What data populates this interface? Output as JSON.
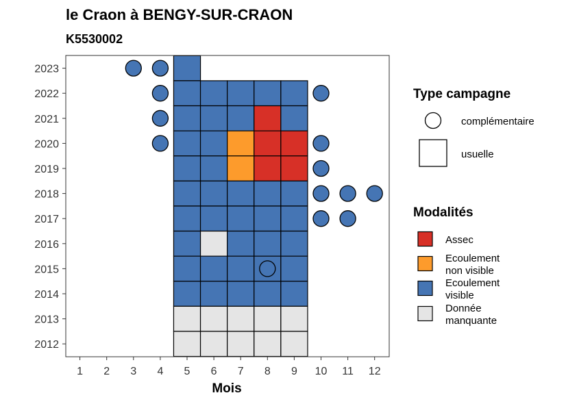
{
  "chart_data": {
    "type": "heatmap",
    "title": "le Craon à BENGY-SUR-CRAON",
    "subtitle": "K5530002",
    "xlabel": "Mois",
    "ylabel": "",
    "x_ticks": [
      "1",
      "2",
      "3",
      "4",
      "5",
      "6",
      "7",
      "8",
      "9",
      "10",
      "11",
      "12"
    ],
    "y_ticks": [
      "2012",
      "2013",
      "2014",
      "2015",
      "2016",
      "2017",
      "2018",
      "2019",
      "2020",
      "2021",
      "2022",
      "2023"
    ],
    "colors": {
      "Assec": "#d73027",
      "Ecoulement non visible": "#fd9b2c",
      "Ecoulement visible": "#4575b4",
      "Donnée manquante": "#e5e5e5"
    },
    "usuelle_cells": [
      {
        "year": 2023,
        "month": 5,
        "modalite": "Ecoulement visible"
      },
      {
        "year": 2022,
        "month": 5,
        "modalite": "Ecoulement visible"
      },
      {
        "year": 2022,
        "month": 6,
        "modalite": "Ecoulement visible"
      },
      {
        "year": 2022,
        "month": 7,
        "modalite": "Ecoulement visible"
      },
      {
        "year": 2022,
        "month": 8,
        "modalite": "Ecoulement visible"
      },
      {
        "year": 2022,
        "month": 9,
        "modalite": "Ecoulement visible"
      },
      {
        "year": 2021,
        "month": 5,
        "modalite": "Ecoulement visible"
      },
      {
        "year": 2021,
        "month": 6,
        "modalite": "Ecoulement visible"
      },
      {
        "year": 2021,
        "month": 7,
        "modalite": "Ecoulement visible"
      },
      {
        "year": 2021,
        "month": 8,
        "modalite": "Assec"
      },
      {
        "year": 2021,
        "month": 9,
        "modalite": "Ecoulement visible"
      },
      {
        "year": 2020,
        "month": 5,
        "modalite": "Ecoulement visible"
      },
      {
        "year": 2020,
        "month": 6,
        "modalite": "Ecoulement visible"
      },
      {
        "year": 2020,
        "month": 7,
        "modalite": "Ecoulement non visible"
      },
      {
        "year": 2020,
        "month": 8,
        "modalite": "Assec"
      },
      {
        "year": 2020,
        "month": 9,
        "modalite": "Assec"
      },
      {
        "year": 2019,
        "month": 5,
        "modalite": "Ecoulement visible"
      },
      {
        "year": 2019,
        "month": 6,
        "modalite": "Ecoulement visible"
      },
      {
        "year": 2019,
        "month": 7,
        "modalite": "Ecoulement non visible"
      },
      {
        "year": 2019,
        "month": 8,
        "modalite": "Assec"
      },
      {
        "year": 2019,
        "month": 9,
        "modalite": "Assec"
      },
      {
        "year": 2018,
        "month": 5,
        "modalite": "Ecoulement visible"
      },
      {
        "year": 2018,
        "month": 6,
        "modalite": "Ecoulement visible"
      },
      {
        "year": 2018,
        "month": 7,
        "modalite": "Ecoulement visible"
      },
      {
        "year": 2018,
        "month": 8,
        "modalite": "Ecoulement visible"
      },
      {
        "year": 2018,
        "month": 9,
        "modalite": "Ecoulement visible"
      },
      {
        "year": 2017,
        "month": 5,
        "modalite": "Ecoulement visible"
      },
      {
        "year": 2017,
        "month": 6,
        "modalite": "Ecoulement visible"
      },
      {
        "year": 2017,
        "month": 7,
        "modalite": "Ecoulement visible"
      },
      {
        "year": 2017,
        "month": 8,
        "modalite": "Ecoulement visible"
      },
      {
        "year": 2017,
        "month": 9,
        "modalite": "Ecoulement visible"
      },
      {
        "year": 2016,
        "month": 5,
        "modalite": "Ecoulement visible"
      },
      {
        "year": 2016,
        "month": 6,
        "modalite": "Donnée manquante"
      },
      {
        "year": 2016,
        "month": 7,
        "modalite": "Ecoulement visible"
      },
      {
        "year": 2016,
        "month": 8,
        "modalite": "Ecoulement visible"
      },
      {
        "year": 2016,
        "month": 9,
        "modalite": "Ecoulement visible"
      },
      {
        "year": 2015,
        "month": 5,
        "modalite": "Ecoulement visible"
      },
      {
        "year": 2015,
        "month": 6,
        "modalite": "Ecoulement visible"
      },
      {
        "year": 2015,
        "month": 7,
        "modalite": "Ecoulement visible"
      },
      {
        "year": 2015,
        "month": 8,
        "modalite": "Ecoulement visible"
      },
      {
        "year": 2015,
        "month": 9,
        "modalite": "Ecoulement visible"
      },
      {
        "year": 2014,
        "month": 5,
        "modalite": "Ecoulement visible"
      },
      {
        "year": 2014,
        "month": 6,
        "modalite": "Ecoulement visible"
      },
      {
        "year": 2014,
        "month": 7,
        "modalite": "Ecoulement visible"
      },
      {
        "year": 2014,
        "month": 8,
        "modalite": "Ecoulement visible"
      },
      {
        "year": 2014,
        "month": 9,
        "modalite": "Ecoulement visible"
      },
      {
        "year": 2013,
        "month": 5,
        "modalite": "Donnée manquante"
      },
      {
        "year": 2013,
        "month": 6,
        "modalite": "Donnée manquante"
      },
      {
        "year": 2013,
        "month": 7,
        "modalite": "Donnée manquante"
      },
      {
        "year": 2013,
        "month": 8,
        "modalite": "Donnée manquante"
      },
      {
        "year": 2013,
        "month": 9,
        "modalite": "Donnée manquante"
      },
      {
        "year": 2012,
        "month": 5,
        "modalite": "Donnée manquante"
      },
      {
        "year": 2012,
        "month": 6,
        "modalite": "Donnée manquante"
      },
      {
        "year": 2012,
        "month": 7,
        "modalite": "Donnée manquante"
      },
      {
        "year": 2012,
        "month": 8,
        "modalite": "Donnée manquante"
      },
      {
        "year": 2012,
        "month": 9,
        "modalite": "Donnée manquante"
      }
    ],
    "complementaire_points": [
      {
        "year": 2023,
        "month": 3,
        "modalite": "Ecoulement visible"
      },
      {
        "year": 2023,
        "month": 4,
        "modalite": "Ecoulement visible"
      },
      {
        "year": 2022,
        "month": 4,
        "modalite": "Ecoulement visible"
      },
      {
        "year": 2022,
        "month": 10,
        "modalite": "Ecoulement visible"
      },
      {
        "year": 2021,
        "month": 4,
        "modalite": "Ecoulement visible"
      },
      {
        "year": 2020,
        "month": 4,
        "modalite": "Ecoulement visible"
      },
      {
        "year": 2020,
        "month": 10,
        "modalite": "Ecoulement visible"
      },
      {
        "year": 2019,
        "month": 10,
        "modalite": "Ecoulement visible"
      },
      {
        "year": 2018,
        "month": 10,
        "modalite": "Ecoulement visible"
      },
      {
        "year": 2018,
        "month": 11,
        "modalite": "Ecoulement visible"
      },
      {
        "year": 2018,
        "month": 12,
        "modalite": "Ecoulement visible"
      },
      {
        "year": 2017,
        "month": 10,
        "modalite": "Ecoulement visible"
      },
      {
        "year": 2017,
        "month": 11,
        "modalite": "Ecoulement visible"
      },
      {
        "year": 2015,
        "month": 8,
        "modalite": "Ecoulement visible"
      }
    ],
    "legend": {
      "type_title": "Type campagne",
      "type_items": [
        "complémentaire",
        "usuelle"
      ],
      "modalites_title": "Modalités",
      "modalites_items": [
        {
          "key": "Assec",
          "lines": [
            "Assec"
          ]
        },
        {
          "key": "Ecoulement non visible",
          "lines": [
            "Ecoulement",
            "non visible"
          ]
        },
        {
          "key": "Ecoulement visible",
          "lines": [
            "Ecoulement",
            "visible"
          ]
        },
        {
          "key": "Donnée manquante",
          "lines": [
            "Donnée",
            "manquante"
          ]
        }
      ],
      "position": "right"
    },
    "grid": false
  }
}
